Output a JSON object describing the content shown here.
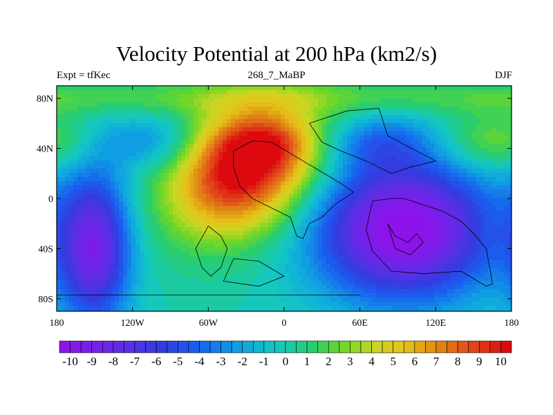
{
  "chart_data": {
    "type": "heatmap",
    "title": "Velocity Potential at 200 hPa (km2/s)",
    "subtitle": "268_7_MaBP",
    "left_label": "Expt = tfKec",
    "right_label": "DJF",
    "xlim": [
      -180,
      180
    ],
    "ylim": [
      -90,
      90
    ],
    "x_ticks": [
      {
        "value": -180,
        "label": "180"
      },
      {
        "value": -120,
        "label": "120W"
      },
      {
        "value": -60,
        "label": "60W"
      },
      {
        "value": 0,
        "label": "0"
      },
      {
        "value": 60,
        "label": "60E"
      },
      {
        "value": 120,
        "label": "120E"
      },
      {
        "value": 180,
        "label": "180"
      }
    ],
    "y_ticks": [
      {
        "value": 80,
        "label": "80N"
      },
      {
        "value": 40,
        "label": "40N"
      },
      {
        "value": 0,
        "label": "0"
      },
      {
        "value": -40,
        "label": "40S"
      },
      {
        "value": -80,
        "label": "80S"
      }
    ],
    "colorbar": {
      "min": -10.5,
      "max": 10.5,
      "step": 0.5,
      "labels": [
        "-10",
        "-9",
        "-8",
        "-7",
        "-6",
        "-5",
        "-4",
        "-3",
        "-2",
        "-1",
        "0",
        "1",
        "2",
        "3",
        "4",
        "5",
        "6",
        "7",
        "8",
        "9",
        "10"
      ]
    },
    "field_centers": [
      {
        "lon": -38,
        "lat": 22,
        "value": 11
      },
      {
        "lon": 95,
        "lat": -25,
        "value": -11
      },
      {
        "lon": -150,
        "lat": -40,
        "value": -9
      }
    ]
  }
}
